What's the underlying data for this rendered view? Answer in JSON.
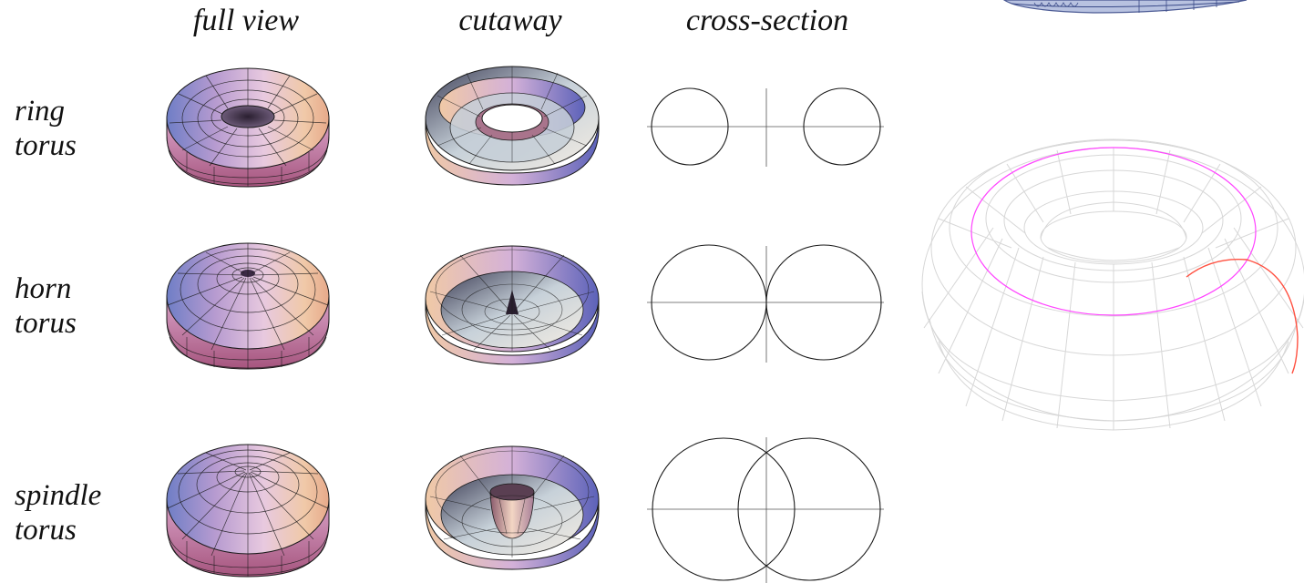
{
  "columns": {
    "full_view": "full view",
    "cutaway": "cutaway",
    "cross_section": "cross-section"
  },
  "rows": [
    {
      "line1": "ring",
      "line2": "torus"
    },
    {
      "line1": "horn",
      "line2": "torus"
    },
    {
      "line1": "spindle",
      "line2": "torus"
    }
  ],
  "colors": {
    "surface_light": "#f2d9e6",
    "surface_mid": "#c8a2d2",
    "surface_blue": "#7c86c8",
    "surface_orange": "#e9b48c",
    "surface_dark": "#3b2a45",
    "mesh": "#1a1a1a",
    "wire_grey": "#d7d7d7",
    "wire_magenta": "#ff44ff",
    "wire_red": "#ff5040"
  }
}
